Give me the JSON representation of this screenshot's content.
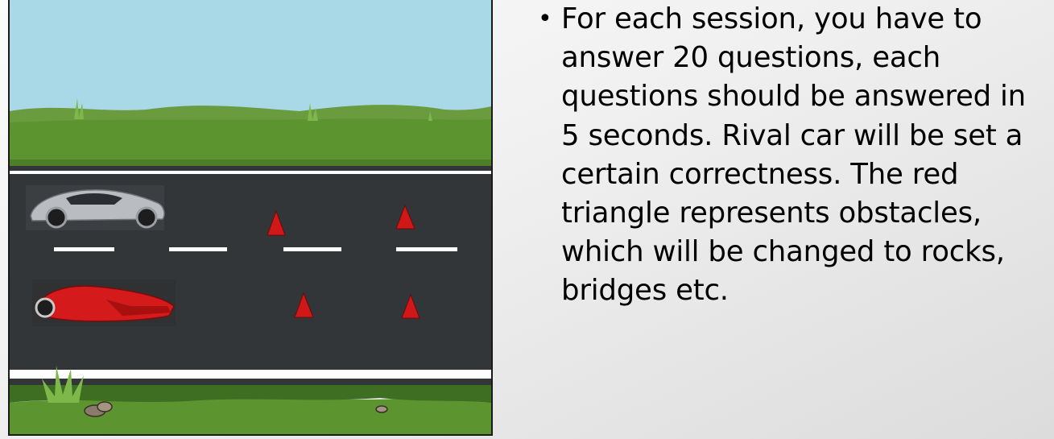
{
  "slide": {
    "bullet_symbol": "•",
    "bullet_text": "For each session, you have to\nanswer 20 questions, each\nquestions should be answered in\n5 seconds. Rival car will be set a\ncertain correctness. The red\ntriangle represents obstacles,\nwhich will be changed to rocks,\nbridges etc."
  },
  "scene": {
    "colors": {
      "sky": "#a9d8e6",
      "hills_far": "#6a9b3e",
      "grass": "#5c9530",
      "road": "#333638",
      "lane_marking": "#ffffff",
      "obstacle": "#d01818",
      "player_car": "#b9bcc0",
      "rival_car": "#d41a1a"
    },
    "lane_dash_count": 4,
    "obstacle_count": 4
  }
}
